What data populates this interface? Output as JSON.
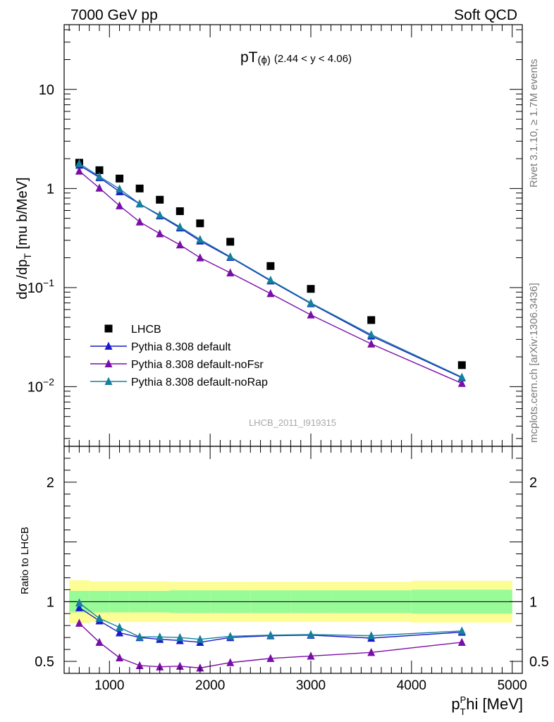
{
  "header": {
    "left": "7000 GeV pp",
    "right": "Soft QCD"
  },
  "side": {
    "rivet": "Rivet 3.1.10, ≥ 1.7M events",
    "mcplots": "mcplots.cern.ch [arXiv:1306.3436]"
  },
  "chart_data": [
    {
      "type": "scatter",
      "panel": "main",
      "title_main": "pT",
      "title_phi": "(ϕ)",
      "title_range": "(2.44 < y < 4.06)",
      "ylabel": "dσ /dp",
      "ylabel_sub": "T",
      "ylabel_unit": " [mu b/MeV]",
      "watermark": "LHCB_2011_I919315",
      "scale": "log",
      "xlim": [
        550,
        5100
      ],
      "ylim": [
        0.0025,
        45
      ],
      "y_ticks": [
        {
          "value": 0.01,
          "base": "10",
          "exp": "−2"
        },
        {
          "value": 0.1,
          "base": "10",
          "exp": "−1"
        },
        {
          "value": 1,
          "base": "1",
          "exp": ""
        },
        {
          "value": 10,
          "base": "10",
          "exp": ""
        }
      ],
      "legend_position": "lower-left",
      "x": [
        700,
        900,
        1100,
        1300,
        1500,
        1700,
        1900,
        2200,
        2600,
        3000,
        3600,
        4500
      ],
      "series": [
        {
          "name": "LHCB",
          "color": "#000000",
          "marker": "square",
          "line": false,
          "values": [
            1.82,
            1.53,
            1.26,
            1.0,
            0.77,
            0.59,
            0.445,
            0.29,
            0.165,
            0.097,
            0.047,
            0.0165
          ]
        },
        {
          "name": "Pythia 8.308 default",
          "color": "#1a1acc",
          "marker": "triangle",
          "line": true,
          "values": [
            1.72,
            1.29,
            0.93,
            0.7,
            0.53,
            0.4,
            0.296,
            0.202,
            0.117,
            0.069,
            0.0325,
            0.0123
          ]
        },
        {
          "name": "Pythia 8.308 default-noFsr",
          "color": "#7a0ea8",
          "marker": "triangle",
          "line": true,
          "values": [
            1.5,
            1.01,
            0.67,
            0.46,
            0.35,
            0.27,
            0.2,
            0.141,
            0.087,
            0.053,
            0.027,
            0.0108
          ]
        },
        {
          "name": "Pythia 8.308 default-noRap",
          "color": "#15809e",
          "marker": "triangle",
          "line": true,
          "values": [
            1.79,
            1.32,
            0.99,
            0.7,
            0.54,
            0.41,
            0.306,
            0.205,
            0.119,
            0.07,
            0.0335,
            0.0125
          ]
        }
      ]
    },
    {
      "type": "line",
      "panel": "ratio",
      "ylabel": "Ratio to LHCB",
      "xlabel_main": "p",
      "xlabel_sub": "T",
      "xlabel_sup": "P",
      "xlabel_rest": "hi [MeV]",
      "xlim": [
        550,
        5100
      ],
      "ylim": [
        0.4,
        2.3
      ],
      "x_ticks": [
        1000,
        2000,
        3000,
        4000,
        5000
      ],
      "y_ticks": [
        0.5,
        1,
        2
      ],
      "x": [
        700,
        900,
        1100,
        1300,
        1500,
        1700,
        1900,
        2200,
        2600,
        3000,
        3600,
        4500
      ],
      "bands": {
        "edges": [
          600,
          800,
          1000,
          1200,
          1400,
          1600,
          1800,
          2000,
          2400,
          2800,
          3200,
          4000,
          5000
        ],
        "stat_low": [
          0.91,
          0.91,
          0.91,
          0.91,
          0.91,
          0.905,
          0.905,
          0.905,
          0.905,
          0.905,
          0.905,
          0.9
        ],
        "stat_high": [
          1.09,
          1.09,
          1.09,
          1.09,
          1.09,
          1.095,
          1.095,
          1.095,
          1.095,
          1.095,
          1.095,
          1.1
        ],
        "total_low": [
          0.82,
          0.83,
          0.83,
          0.83,
          0.83,
          0.83,
          0.83,
          0.83,
          0.83,
          0.83,
          0.83,
          0.825
        ],
        "total_high": [
          1.18,
          1.17,
          1.17,
          1.17,
          1.17,
          1.165,
          1.165,
          1.165,
          1.165,
          1.165,
          1.165,
          1.175
        ],
        "stat_color": "#98fb98",
        "total_color": "#fdfd96"
      },
      "series": [
        {
          "name": "Pythia 8.308 default",
          "color": "#1a1acc",
          "values": [
            0.95,
            0.84,
            0.74,
            0.7,
            0.685,
            0.675,
            0.66,
            0.7,
            0.715,
            0.72,
            0.695,
            0.745
          ],
          "errors": [
            0,
            0,
            0,
            0,
            0,
            0,
            0,
            0,
            0,
            0.015,
            0,
            0.02
          ]
        },
        {
          "name": "Pythia 8.308 default-noFsr",
          "color": "#7a0ea8",
          "values": [
            0.82,
            0.66,
            0.53,
            0.465,
            0.455,
            0.46,
            0.445,
            0.49,
            0.525,
            0.545,
            0.575,
            0.66
          ],
          "errors": [
            0,
            0,
            0,
            0,
            0,
            0,
            0,
            0,
            0,
            0.015,
            0.015,
            0.025
          ]
        },
        {
          "name": "Pythia 8.308 default-noRap",
          "color": "#15809e",
          "values": [
            0.99,
            0.86,
            0.785,
            0.705,
            0.705,
            0.7,
            0.685,
            0.71,
            0.72,
            0.725,
            0.715,
            0.755
          ],
          "errors": [
            0,
            0,
            0,
            0,
            0,
            0,
            0,
            0,
            0,
            0.015,
            0.015,
            0.02
          ]
        }
      ]
    }
  ]
}
